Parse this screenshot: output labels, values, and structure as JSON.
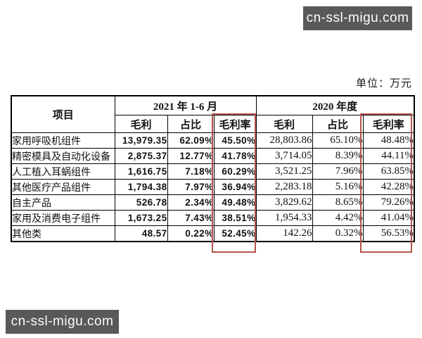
{
  "watermarks": {
    "top_right": "cn-ssl-migu.com",
    "bottom_left": "cn-ssl-migu.com"
  },
  "unit_label": "单位：万元",
  "highlight_color": "#b5544b",
  "table": {
    "header": {
      "item": "项目",
      "group_2021": "2021 年 1-6 月",
      "group_2020": "2020 年度",
      "sub_headers": [
        "毛利",
        "占比",
        "毛利率",
        "毛利",
        "占比",
        "毛利率"
      ]
    },
    "rows": [
      {
        "label": "家用呼吸机组件",
        "values": [
          "13,979.35",
          "62.09%",
          "45.50%",
          "28,803.86",
          "65.10%",
          "48.48%"
        ]
      },
      {
        "label": "精密模具及自动化设备",
        "values": [
          "2,875.37",
          "12.77%",
          "41.78%",
          "3,714.05",
          "8.39%",
          "44.11%"
        ]
      },
      {
        "label": "人工植入耳蜗组件",
        "values": [
          "1,616.75",
          "7.18%",
          "60.29%",
          "3,521.25",
          "7.96%",
          "63.85%"
        ]
      },
      {
        "label": "其他医疗产品组件",
        "values": [
          "1,794.38",
          "7.97%",
          "36.94%",
          "2,283.18",
          "5.16%",
          "42.28%"
        ]
      },
      {
        "label": "自主产品",
        "values": [
          "526.78",
          "2.34%",
          "49.48%",
          "3,829.62",
          "8.65%",
          "79.26%"
        ]
      },
      {
        "label": "家用及消费电子组件",
        "values": [
          "1,673.25",
          "7.43%",
          "38.51%",
          "1,954.33",
          "4.42%",
          "41.04%"
        ]
      },
      {
        "label": "其他类",
        "values": [
          "48.57",
          "0.22%",
          "52.45%",
          "142.26",
          "0.32%",
          "56.53%"
        ]
      }
    ]
  }
}
